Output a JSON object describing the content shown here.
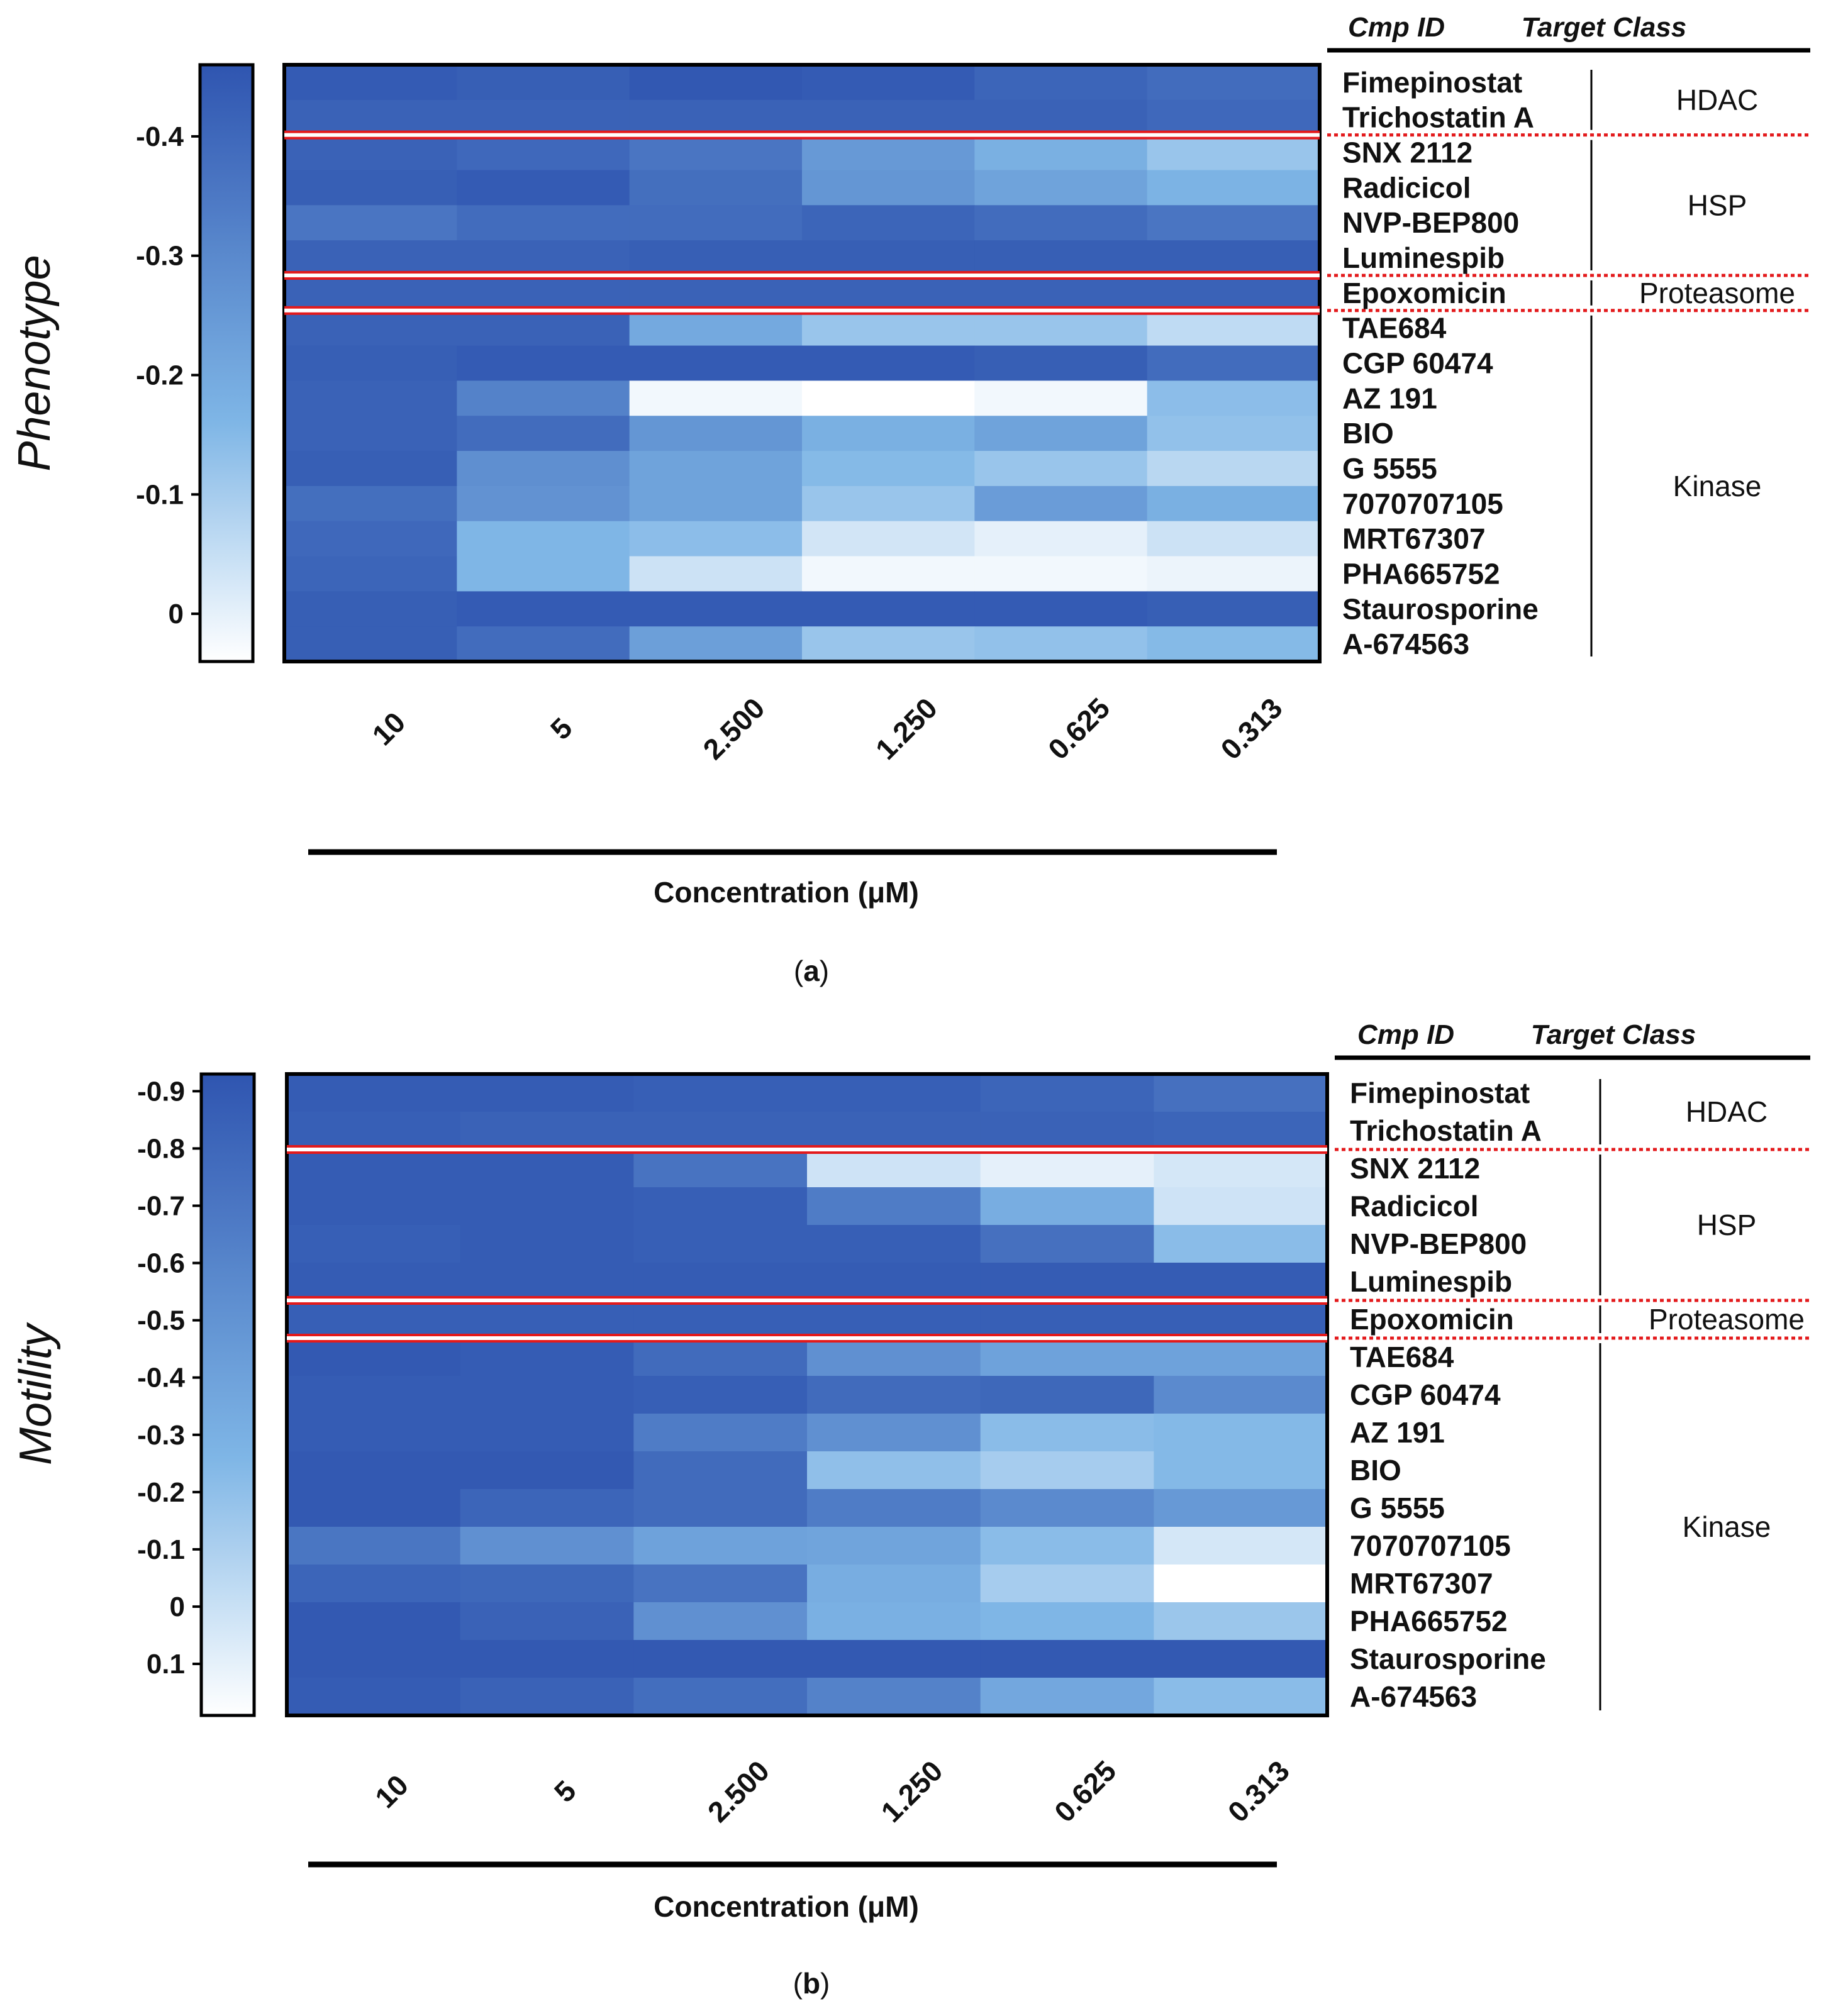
{
  "colors": {
    "scale_low": "#ffffff",
    "scale_mid": "#7fb6e6",
    "scale_high": "#2f55b0",
    "separator_red": "#e31a1c",
    "frame": "#000000"
  },
  "legend": {
    "cmp_id_header": "Cmp ID",
    "target_class_header": "Target Class"
  },
  "chart_data": [
    {
      "type": "heatmap",
      "panel_letter": "a",
      "ylabel": "Phenotype",
      "xlabel": "Concentration (μM)",
      "concentrations": [
        "10",
        "5",
        "2.500",
        "1.250",
        "0.625",
        "0.313"
      ],
      "colorbar": {
        "ticks": [
          "-0.4",
          "-0.3",
          "-0.2",
          "-0.1",
          "0"
        ],
        "tick_values": [
          -0.4,
          -0.3,
          -0.2,
          -0.1,
          0
        ],
        "range": [
          -0.46,
          0.04
        ]
      },
      "compounds": [
        "Fimepinostat",
        "Trichostatin A",
        "SNX 2112",
        "Radicicol",
        "NVP-BEP800",
        "Luminespib",
        "Epoxomicin",
        "TAE684",
        "CGP 60474",
        "AZ 191",
        "BIO",
        "G 5555",
        "7070707105",
        "MRT67307",
        "PHA665752",
        "Staurosporine",
        "A-674563"
      ],
      "classes": [
        {
          "name": "HDAC",
          "rows": [
            0,
            1
          ]
        },
        {
          "name": "HSP",
          "rows": [
            2,
            5
          ]
        },
        {
          "name": "Proteasome",
          "rows": [
            6,
            6
          ]
        },
        {
          "name": "Kinase",
          "rows": [
            7,
            16
          ]
        }
      ],
      "values": [
        [
          -0.44,
          -0.43,
          -0.45,
          -0.44,
          -0.41,
          -0.39
        ],
        [
          -0.42,
          -0.42,
          -0.42,
          -0.42,
          -0.42,
          -0.4
        ],
        [
          -0.42,
          -0.4,
          -0.36,
          -0.25,
          -0.18,
          -0.12
        ],
        [
          -0.43,
          -0.44,
          -0.38,
          -0.26,
          -0.22,
          -0.17
        ],
        [
          -0.36,
          -0.39,
          -0.39,
          -0.41,
          -0.39,
          -0.36
        ],
        [
          -0.42,
          -0.42,
          -0.43,
          -0.43,
          -0.43,
          -0.43
        ],
        [
          -0.42,
          -0.42,
          -0.42,
          -0.42,
          -0.42,
          -0.42
        ],
        [
          -0.42,
          -0.42,
          -0.2,
          -0.12,
          -0.12,
          -0.06
        ],
        [
          -0.43,
          -0.44,
          -0.44,
          -0.44,
          -0.43,
          -0.39
        ],
        [
          -0.42,
          -0.32,
          0.02,
          0.04,
          0.02,
          -0.14
        ],
        [
          -0.42,
          -0.39,
          -0.26,
          -0.18,
          -0.22,
          -0.13
        ],
        [
          -0.43,
          -0.28,
          -0.22,
          -0.15,
          -0.12,
          -0.07
        ],
        [
          -0.38,
          -0.27,
          -0.22,
          -0.12,
          -0.24,
          -0.18
        ],
        [
          -0.4,
          -0.16,
          -0.14,
          -0.03,
          0.0,
          -0.04
        ],
        [
          -0.41,
          -0.16,
          -0.04,
          0.02,
          0.02,
          0.01
        ],
        [
          -0.43,
          -0.44,
          -0.44,
          -0.44,
          -0.44,
          -0.43
        ],
        [
          -0.43,
          -0.39,
          -0.23,
          -0.12,
          -0.13,
          -0.15
        ]
      ]
    },
    {
      "type": "heatmap",
      "panel_letter": "b",
      "ylabel": "Motility",
      "xlabel": "Concentration (μM)",
      "concentrations": [
        "10",
        "5",
        "2.500",
        "1.250",
        "0.625",
        "0.313"
      ],
      "colorbar": {
        "ticks": [
          "-0.9",
          "-0.8",
          "-0.7",
          "-0.6",
          "-0.5",
          "-0.4",
          "-0.3",
          "-0.2",
          "-0.1",
          "0",
          "0.1"
        ],
        "tick_values": [
          -0.9,
          -0.8,
          -0.7,
          -0.6,
          -0.5,
          -0.4,
          -0.3,
          -0.2,
          -0.1,
          0,
          0.1
        ],
        "range": [
          -0.93,
          0.19
        ]
      },
      "compounds": [
        "Fimepinostat",
        "Trichostatin A",
        "SNX 2112",
        "Radicicol",
        "NVP-BEP800",
        "Luminespib",
        "Epoxomicin",
        "TAE684",
        "CGP 60474",
        "AZ 191",
        "BIO",
        "G 5555",
        "7070707105",
        "MRT67307",
        "PHA665752",
        "Staurosporine",
        "A-674563"
      ],
      "classes": [
        {
          "name": "HDAC",
          "rows": [
            0,
            1
          ]
        },
        {
          "name": "HSP",
          "rows": [
            2,
            5
          ]
        },
        {
          "name": "Proteasome",
          "rows": [
            6,
            6
          ]
        },
        {
          "name": "Kinase",
          "rows": [
            7,
            16
          ]
        }
      ],
      "values": [
        [
          -0.88,
          -0.88,
          -0.86,
          -0.86,
          -0.82,
          -0.74
        ],
        [
          -0.86,
          -0.84,
          -0.84,
          -0.84,
          -0.84,
          -0.82
        ],
        [
          -0.88,
          -0.88,
          -0.72,
          0.02,
          0.1,
          0.04
        ],
        [
          -0.88,
          -0.88,
          -0.86,
          -0.66,
          -0.32,
          0.02
        ],
        [
          -0.86,
          -0.88,
          -0.86,
          -0.86,
          -0.74,
          -0.22
        ],
        [
          -0.88,
          -0.88,
          -0.88,
          -0.88,
          -0.88,
          -0.88
        ],
        [
          -0.86,
          -0.86,
          -0.86,
          -0.86,
          -0.86,
          -0.86
        ],
        [
          -0.9,
          -0.88,
          -0.78,
          -0.52,
          -0.4,
          -0.4
        ],
        [
          -0.88,
          -0.88,
          -0.86,
          -0.78,
          -0.8,
          -0.56
        ],
        [
          -0.88,
          -0.88,
          -0.66,
          -0.52,
          -0.22,
          -0.24
        ],
        [
          -0.9,
          -0.9,
          -0.78,
          -0.2,
          -0.12,
          -0.24
        ],
        [
          -0.9,
          -0.82,
          -0.78,
          -0.66,
          -0.56,
          -0.46
        ],
        [
          -0.7,
          -0.52,
          -0.4,
          -0.38,
          -0.22,
          0.04
        ],
        [
          -0.82,
          -0.8,
          -0.72,
          -0.32,
          -0.12,
          0.19
        ],
        [
          -0.9,
          -0.84,
          -0.52,
          -0.3,
          -0.26,
          -0.16
        ],
        [
          -0.9,
          -0.9,
          -0.9,
          -0.9,
          -0.9,
          -0.9
        ],
        [
          -0.88,
          -0.84,
          -0.76,
          -0.62,
          -0.36,
          -0.22
        ]
      ]
    }
  ]
}
